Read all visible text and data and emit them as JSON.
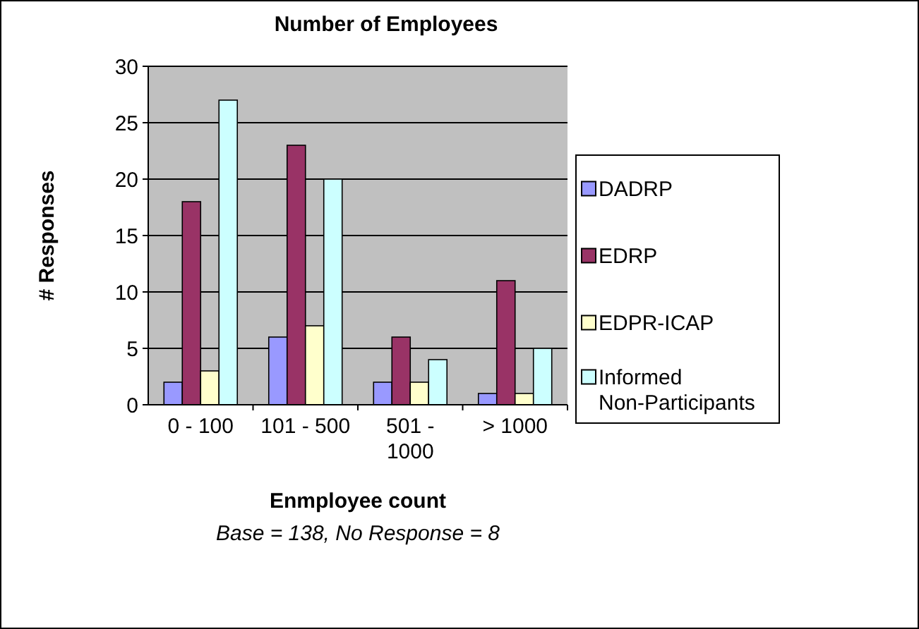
{
  "chart_data": {
    "type": "bar",
    "title": "Number of Employees",
    "xlabel": "Enmployee count",
    "ylabel": "# Responses",
    "annotations": [
      "Base = 138, No Response = 8"
    ],
    "categories": [
      "0 - 100",
      "101 - 500",
      "501 - 1000",
      "> 1000"
    ],
    "series": [
      {
        "name": "DADRP",
        "color": "#9999ff",
        "values": [
          2,
          6,
          2,
          1
        ]
      },
      {
        "name": "EDRP",
        "color": "#993366",
        "values": [
          18,
          23,
          6,
          11
        ]
      },
      {
        "name": "EDPR-ICAP",
        "color": "#ffffcc",
        "values": [
          3,
          7,
          2,
          1
        ]
      },
      {
        "name": "Informed Non-Participants",
        "color": "#ccffff",
        "values": [
          27,
          20,
          4,
          5
        ]
      }
    ],
    "ylim": [
      0,
      30
    ],
    "yticks": [
      0,
      5,
      10,
      15,
      20,
      25,
      30
    ],
    "grid": "y",
    "legend": "right"
  }
}
